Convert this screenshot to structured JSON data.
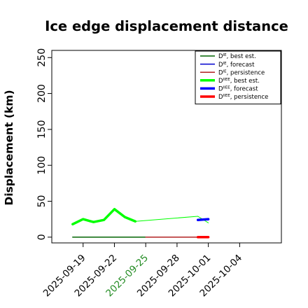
{
  "chart_data": {
    "type": "line",
    "title": "Ice edge displacement distance",
    "ylabel": "Displacement (km)",
    "xlabel": "",
    "ylim": [
      -8,
      260
    ],
    "xlim": [
      "2025-09-16",
      "2025-10-08"
    ],
    "yticks": [
      0,
      50,
      100,
      150,
      200,
      250
    ],
    "xticks": [
      {
        "label": "2025-09-19",
        "date": "2025-09-19",
        "color": "#000000"
      },
      {
        "label": "2025-09-22",
        "date": "2025-09-22",
        "color": "#000000"
      },
      {
        "label": "2025-09-25",
        "date": "2025-09-25",
        "color": "#228b22"
      },
      {
        "label": "2025-09-28",
        "date": "2025-09-28",
        "color": "#000000"
      },
      {
        "label": "2025-10-01",
        "date": "2025-10-01",
        "color": "#000000"
      },
      {
        "label": "2025-10-04",
        "date": "2025-10-04",
        "color": "#000000"
      }
    ],
    "legend_position": "top-right",
    "series": [
      {
        "name": "D^IE, best est.",
        "legend_main": "D",
        "legend_sup": "IE",
        "legend_tail": ", best est.",
        "color": "#006400",
        "width": 1.5,
        "thick": false,
        "points": [
          [
            "2025-09-18",
            0
          ],
          [
            "2025-09-25",
            0
          ]
        ]
      },
      {
        "name": "D^IE, forecast",
        "legend_main": "D",
        "legend_sup": "IE",
        "legend_tail": ", forecast",
        "color": "#0000cd",
        "width": 1.5,
        "thick": false,
        "points": []
      },
      {
        "name": "D^IE, persistence",
        "legend_main": "D",
        "legend_sup": "IE",
        "legend_tail": ", persistence",
        "color": "#b22222",
        "width": 1.5,
        "thick": false,
        "points": [
          [
            "2025-09-25",
            0
          ],
          [
            "2025-10-01",
            0
          ]
        ]
      },
      {
        "name": "D^IIEE, best est.",
        "legend_main": "D",
        "legend_sup": "IIEE",
        "legend_tail": ", best est.",
        "color": "#00ff00",
        "width": 3.5,
        "thick": true,
        "points": [
          [
            "2025-09-18",
            18
          ],
          [
            "2025-09-19",
            25
          ],
          [
            "2025-09-20",
            21
          ],
          [
            "2025-09-21",
            24
          ],
          [
            "2025-09-22",
            39
          ],
          [
            "2025-09-23",
            28
          ],
          [
            "2025-09-24",
            22
          ]
        ]
      },
      {
        "name": "D^IIEE, best est. (continued)",
        "legend_main": "",
        "legend_sup": "",
        "legend_tail": "",
        "color": "#00ff00",
        "width": 1,
        "thick": false,
        "no_legend": true,
        "points": [
          [
            "2025-09-24",
            22
          ],
          [
            "2025-09-30",
            29
          ],
          [
            "2025-10-01",
            20
          ]
        ]
      },
      {
        "name": "D^IIEE, forecast",
        "legend_main": "D",
        "legend_sup": "IIEE",
        "legend_tail": ", forecast",
        "color": "#0000ff",
        "width": 3.5,
        "thick": true,
        "points": [
          [
            "2025-09-30",
            24
          ],
          [
            "2025-10-01",
            25
          ]
        ]
      },
      {
        "name": "D^IIEE, persistence",
        "legend_main": "D",
        "legend_sup": "IIEE",
        "legend_tail": ", persistence",
        "color": "#ff0000",
        "width": 3.5,
        "thick": true,
        "points": [
          [
            "2025-09-30",
            0
          ],
          [
            "2025-10-01",
            0
          ]
        ]
      }
    ]
  }
}
